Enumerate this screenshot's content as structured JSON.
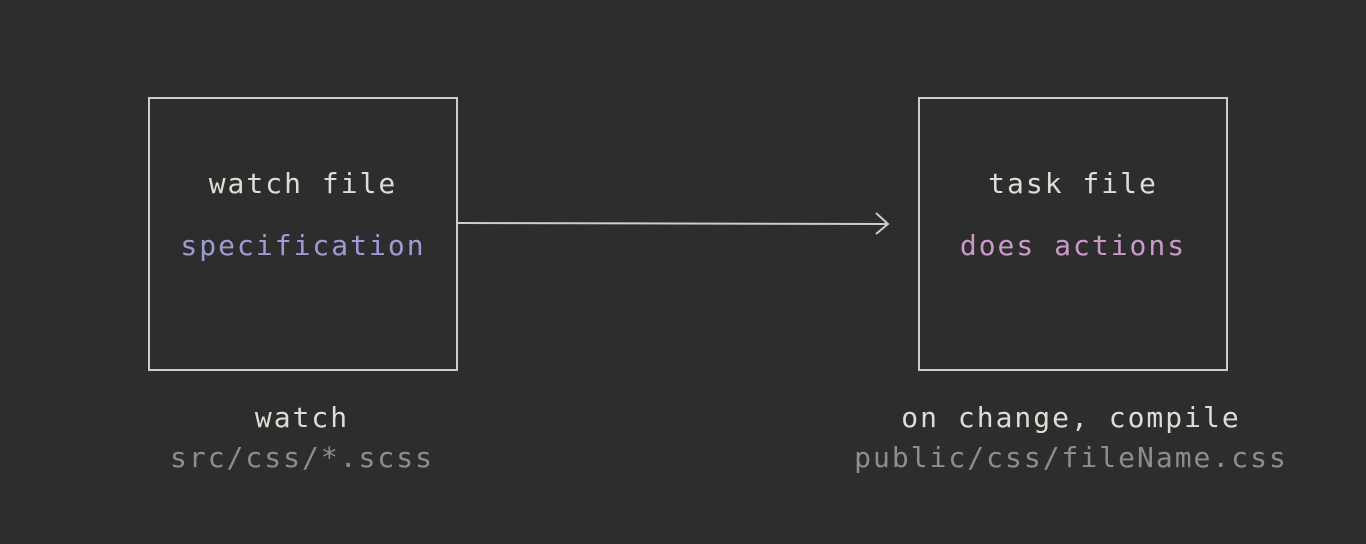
{
  "nodes": {
    "watch": {
      "title": "watch file",
      "subtitle": "specification",
      "caption": "watch",
      "path": "src/css/*.scss"
    },
    "task": {
      "title": "task file",
      "subtitle": "does actions",
      "caption": "on change, compile",
      "path": "public/css/fileName.css"
    }
  },
  "colors": {
    "background": "#2d2d2d",
    "stroke": "#cfcdc4",
    "text": "#dedcd4",
    "watch_subtitle": "#9d9bd3",
    "task_subtitle": "#c99ac9",
    "path_text": "#8e8d89"
  }
}
